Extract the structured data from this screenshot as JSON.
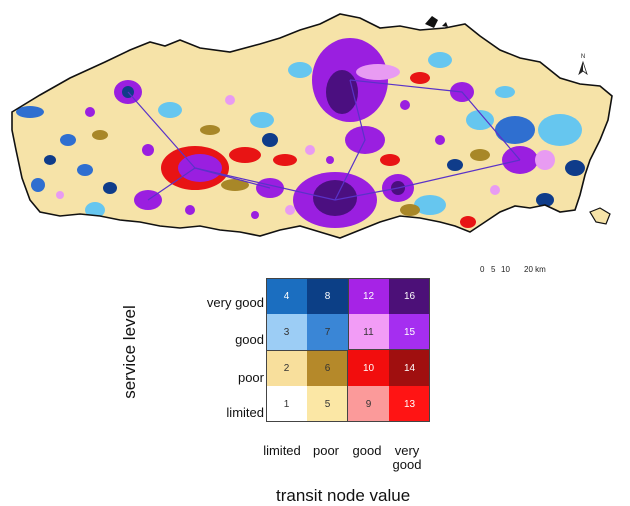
{
  "map": {
    "north_label": "N",
    "scale": {
      "ticks": [
        "0",
        "5",
        "10",
        "20 km"
      ]
    }
  },
  "legend": {
    "y_title": "service level",
    "x_title": "transit node value",
    "row_labels": [
      "very good",
      "good",
      "poor",
      "limited"
    ],
    "col_labels": [
      "limited",
      "poor",
      "good",
      "very\ngood"
    ],
    "rows": [
      [
        {
          "value": "4",
          "color": "#1b6ec0"
        },
        {
          "value": "8",
          "color": "#0c3f86"
        },
        {
          "value": "12",
          "color": "#a623e6"
        },
        {
          "value": "16",
          "color": "#4c1078"
        }
      ],
      [
        {
          "value": "3",
          "color": "#9ccdf5"
        },
        {
          "value": "7",
          "color": "#3a86d6"
        },
        {
          "value": "11",
          "color": "#f29cf6"
        },
        {
          "value": "15",
          "color": "#a52ef0"
        }
      ],
      [
        {
          "value": "2",
          "color": "#f8df9c"
        },
        {
          "value": "6",
          "color": "#b5892a"
        },
        {
          "value": "10",
          "color": "#f20d0d"
        },
        {
          "value": "14",
          "color": "#a00f0f"
        }
      ],
      [
        {
          "value": "1",
          "color": "#ffffff"
        },
        {
          "value": "5",
          "color": "#fbe7a5"
        },
        {
          "value": "9",
          "color": "#fb9a9a"
        },
        {
          "value": "13",
          "color": "#ff1414"
        }
      ]
    ]
  },
  "colors": {
    "base": "#f6e3a8",
    "boundary": "#111111",
    "light_blue": "#66c6ef",
    "blue": "#2f6fd0",
    "navy": "#0f3c8a",
    "purple": "#9a1fe0",
    "dark_purple": "#4b0f80",
    "pink": "#e89bf2",
    "red": "#e81414",
    "olive": "#a88728"
  }
}
